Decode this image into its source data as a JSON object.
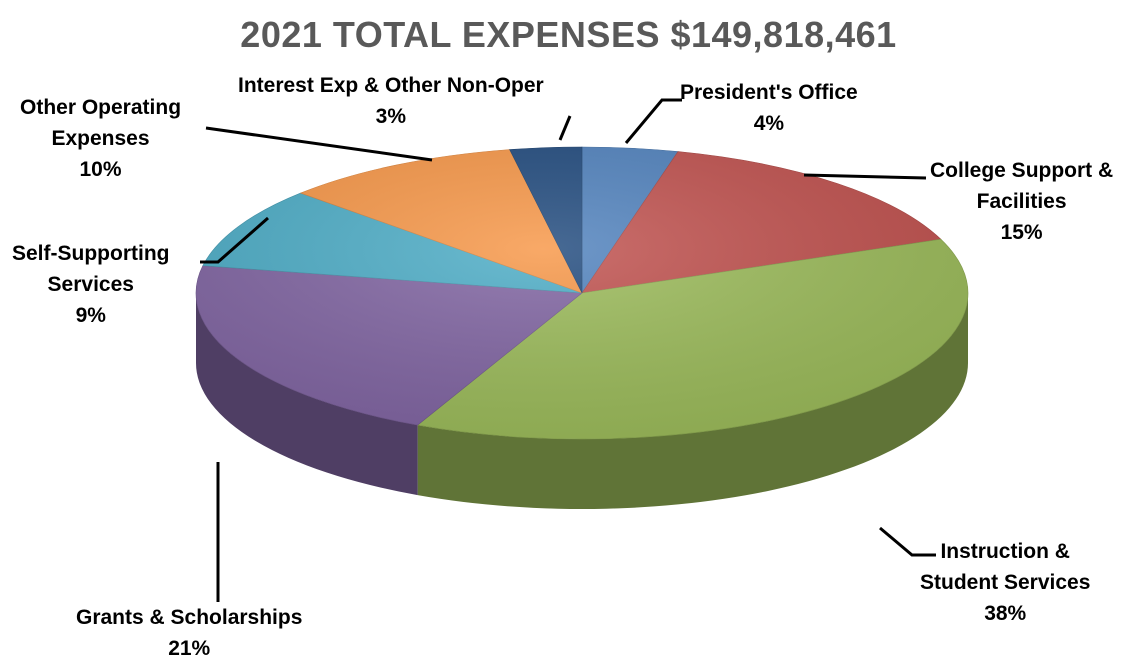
{
  "chart_data": {
    "type": "pie",
    "title": "2021 TOTAL EXPENSES $149,818,461",
    "slices": [
      {
        "name": "President's Office",
        "name_lines": [
          "President's Office"
        ],
        "value": 4,
        "label": "4%",
        "color": "#4F81BD"
      },
      {
        "name": "College Support & Facilities",
        "name_lines": [
          "College Support &",
          "Facilities"
        ],
        "value": 15,
        "label": "15%",
        "color": "#C0504D"
      },
      {
        "name": "Instruction & Student Services",
        "name_lines": [
          "Instruction &",
          "Student Services"
        ],
        "value": 38,
        "label": "38%",
        "color": "#9BBB59"
      },
      {
        "name": "Grants & Scholarships",
        "name_lines": [
          "Grants & Scholarships"
        ],
        "value": 21,
        "label": "21%",
        "color": "#8064A2"
      },
      {
        "name": "Self-Supporting Services",
        "name_lines": [
          "Self-Supporting",
          "Services"
        ],
        "value": 9,
        "label": "9%",
        "color": "#4BACC6"
      },
      {
        "name": "Other Operating Expenses",
        "name_lines": [
          "Other Operating",
          "Expenses"
        ],
        "value": 10,
        "label": "10%",
        "color": "#F79646"
      },
      {
        "name": "Interest Exp & Other Non-Oper",
        "name_lines": [
          "Interest Exp & Other Non-Oper"
        ],
        "value": 3,
        "label": "3%",
        "color": "#1F497D"
      }
    ],
    "legend": "none",
    "style": "3d-pie"
  }
}
